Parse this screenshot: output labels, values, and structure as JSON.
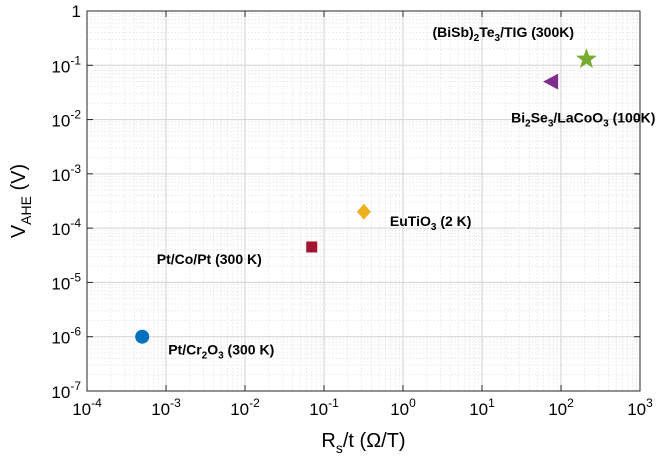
{
  "chart_data": {
    "type": "scatter",
    "x_scale": "log",
    "y_scale": "log",
    "xlim": [
      0.0001,
      1000
    ],
    "ylim": [
      1e-07,
      1
    ],
    "grid": true,
    "x_tick_exponents": [
      -4,
      -3,
      -2,
      -1,
      0,
      1,
      2,
      3
    ],
    "y_ticks": [
      {
        "base": "10",
        "exp": "-7"
      },
      {
        "base": "10",
        "exp": "-6"
      },
      {
        "base": "10",
        "exp": "-5"
      },
      {
        "base": "10",
        "exp": "-4"
      },
      {
        "base": "10",
        "exp": "-3"
      },
      {
        "base": "10",
        "exp": "-2"
      },
      {
        "base": "10",
        "exp": "-1"
      },
      {
        "base": "1",
        "exp": ""
      }
    ],
    "xlabel": {
      "main": "R",
      "sub": "s",
      "rest": "/t (Ω/T)"
    },
    "ylabel": {
      "main": "V",
      "sub": "AHE",
      "rest": " (V)"
    },
    "points": [
      {
        "x": 0.0005,
        "y": 1e-06,
        "marker": "circle",
        "color": "#0072BD",
        "label_parts": [
          [
            "Pt/Cr",
            0
          ],
          [
            "2",
            1
          ],
          [
            "O",
            0
          ],
          [
            "3",
            1
          ],
          [
            " (300 K)",
            0
          ]
        ],
        "label_anchor": "right"
      },
      {
        "x": 0.07,
        "y": 4.5e-05,
        "marker": "square",
        "color": "#A2142F",
        "label_parts": [
          [
            "Pt/Co/Pt (300 K)",
            0
          ]
        ],
        "label_anchor": "left-below"
      },
      {
        "x": 0.32,
        "y": 0.0002,
        "marker": "diamond",
        "color": "#EDB120",
        "label_parts": [
          [
            "EuTiO",
            0
          ],
          [
            "3",
            1
          ],
          [
            " (2 K)",
            0
          ]
        ],
        "label_anchor": "right"
      },
      {
        "x": 75,
        "y": 0.05,
        "marker": "triangle-left",
        "color": "#7E2F8E",
        "label_parts": [
          [
            "Bi",
            0
          ],
          [
            "2",
            1
          ],
          [
            "Se",
            0
          ],
          [
            "3",
            1
          ],
          [
            "/LaCoO",
            0
          ],
          [
            "3",
            1
          ],
          [
            " (100K)",
            0
          ]
        ],
        "label_anchor": "below"
      },
      {
        "x": 210,
        "y": 0.13,
        "marker": "star",
        "color": "#77AC30",
        "label_parts": [
          [
            "(BiSb)",
            0
          ],
          [
            "2",
            1
          ],
          [
            "Te",
            0
          ],
          [
            "3",
            1
          ],
          [
            "/TIG (300K)",
            0
          ]
        ],
        "label_anchor": "above-left"
      }
    ]
  }
}
